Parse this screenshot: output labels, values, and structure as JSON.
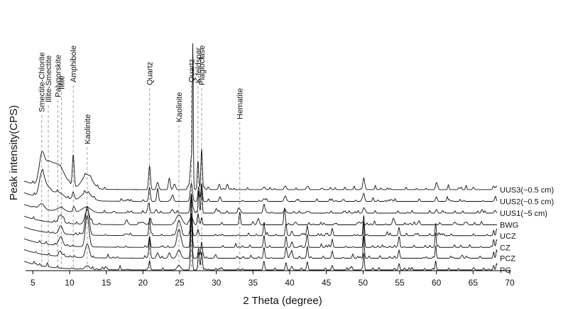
{
  "chart_data": {
    "type": "line",
    "xlabel": "2 Theta (degree)",
    "ylabel": "Peak intensity(CPS)",
    "xlim": [
      4,
      70
    ],
    "xticks": [
      5,
      10,
      15,
      20,
      25,
      30,
      35,
      40,
      45,
      50,
      55,
      60,
      65,
      70
    ],
    "grid": false,
    "legend": "none",
    "mineral_markers": [
      {
        "label": "Smectite-Chlorite",
        "x": 6.2
      },
      {
        "label": "Illite-Smectite",
        "x": 7.1
      },
      {
        "label": "Palygorskite",
        "x": 8.4
      },
      {
        "label": "Illite",
        "x": 8.9
      },
      {
        "label": "Amphibole",
        "x": 10.5
      },
      {
        "label": "Kaolinite",
        "x": 12.4
      },
      {
        "label": "Quartz",
        "x": 20.9
      },
      {
        "label": "Kaolinite",
        "x": 24.9
      },
      {
        "label": "Quartz",
        "x": 26.6
      },
      {
        "label": "K-feldspar",
        "x": 27.5
      },
      {
        "label": "Plagioclase",
        "x": 28.0
      },
      {
        "label": "Hematite",
        "x": 33.2
      }
    ],
    "series": [
      {
        "name": "UUS3(~0.5 cm)",
        "baseline": 7.6,
        "peaks": [
          [
            6.2,
            3.0,
            0.35
          ],
          [
            7.0,
            1.5,
            0.5
          ],
          [
            8.3,
            2.6,
            1.0
          ],
          [
            10.5,
            3.5,
            0.12
          ],
          [
            12.4,
            1.6,
            0.7
          ],
          [
            20.9,
            2.6,
            0.12
          ],
          [
            22.0,
            0.8,
            0.15
          ],
          [
            23.6,
            1.2,
            0.12
          ],
          [
            24.3,
            0.6,
            0.15
          ],
          [
            26.6,
            3.6,
            0.15
          ],
          [
            26.8,
            14.8,
            0.06
          ],
          [
            27.5,
            3.2,
            0.1
          ],
          [
            28.0,
            4.5,
            0.1
          ],
          [
            30.4,
            0.6,
            0.12
          ],
          [
            31.5,
            0.6,
            0.12
          ],
          [
            36.5,
            0.3,
            0.15
          ],
          [
            39.4,
            0.4,
            0.15
          ],
          [
            42.4,
            0.3,
            0.15
          ],
          [
            50.1,
            1.3,
            0.12
          ],
          [
            60.0,
            0.8,
            0.12
          ],
          [
            67.8,
            0.4,
            0.12
          ],
          [
            68.2,
            0.4,
            0.12
          ]
        ]
      },
      {
        "name": "UUS2(~0.5 cm)",
        "baseline": 6.3,
        "peaks": [
          [
            6.2,
            2.4,
            0.35
          ],
          [
            6.9,
            1.1,
            0.5
          ],
          [
            8.4,
            0.8,
            0.8
          ],
          [
            10.5,
            0.8,
            0.15
          ],
          [
            12.3,
            0.9,
            0.7
          ],
          [
            20.9,
            1.3,
            0.12
          ],
          [
            22.0,
            1.3,
            0.12
          ],
          [
            24.0,
            0.6,
            0.15
          ],
          [
            26.6,
            2.0,
            0.15
          ],
          [
            27.6,
            1.5,
            0.1
          ],
          [
            28.0,
            2.0,
            0.1
          ],
          [
            30.5,
            0.5,
            0.12
          ],
          [
            36.5,
            0.3,
            0.15
          ],
          [
            39.4,
            0.6,
            0.15
          ],
          [
            50.1,
            0.9,
            0.12
          ],
          [
            60.0,
            0.5,
            0.12
          ],
          [
            68.0,
            0.3,
            0.12
          ]
        ]
      },
      {
        "name": "UUS1(~5 cm)",
        "baseline": 5.0,
        "peaks": [
          [
            6.2,
            0.6,
            0.35
          ],
          [
            8.8,
            0.4,
            0.5
          ],
          [
            10.6,
            0.6,
            0.15
          ],
          [
            12.3,
            0.6,
            0.6
          ],
          [
            20.8,
            1.1,
            0.12
          ],
          [
            21.8,
            0.4,
            0.12
          ],
          [
            24.0,
            0.4,
            0.15
          ],
          [
            26.6,
            1.9,
            0.15
          ],
          [
            27.6,
            2.5,
            0.08
          ],
          [
            28.0,
            3.2,
            0.08
          ],
          [
            30.0,
            0.5,
            0.12
          ],
          [
            33.2,
            0.4,
            0.15
          ],
          [
            36.5,
            1.0,
            0.12
          ],
          [
            39.4,
            0.3,
            0.15
          ],
          [
            42.4,
            0.2,
            0.15
          ],
          [
            50.1,
            0.6,
            0.12
          ],
          [
            60.0,
            0.4,
            0.12
          ],
          [
            68.0,
            0.3,
            0.12
          ]
        ]
      },
      {
        "name": "BWG",
        "baseline": 3.7,
        "peaks": [
          [
            8.8,
            0.9,
            0.3
          ],
          [
            12.4,
            1.6,
            0.3
          ],
          [
            17.8,
            0.3,
            0.2
          ],
          [
            19.9,
            0.3,
            0.3
          ],
          [
            21.0,
            0.6,
            0.15
          ],
          [
            24.9,
            1.1,
            0.4
          ],
          [
            26.6,
            1.0,
            0.2
          ],
          [
            27.5,
            1.2,
            0.1
          ],
          [
            28.0,
            0.8,
            0.1
          ],
          [
            33.2,
            1.4,
            0.1
          ],
          [
            35.7,
            0.6,
            0.15
          ],
          [
            39.3,
            1.9,
            0.1
          ],
          [
            40.8,
            0.3,
            0.15
          ],
          [
            49.5,
            0.3,
            0.15
          ],
          [
            54.1,
            0.6,
            0.12
          ],
          [
            57.6,
            0.3,
            0.15
          ],
          [
            62.5,
            0.3,
            0.15
          ],
          [
            64.1,
            0.3,
            0.15
          ]
        ]
      },
      {
        "name": "UCZ",
        "baseline": 2.5,
        "peaks": [
          [
            8.8,
            0.9,
            0.25
          ],
          [
            12.4,
            3.2,
            0.25
          ],
          [
            17.8,
            0.2,
            0.2
          ],
          [
            20.9,
            1.7,
            0.1
          ],
          [
            24.9,
            1.7,
            0.25
          ],
          [
            26.6,
            4.0,
            0.1
          ],
          [
            27.5,
            0.7,
            0.1
          ],
          [
            36.5,
            1.2,
            0.1
          ],
          [
            39.5,
            1.1,
            0.1
          ],
          [
            40.3,
            0.5,
            0.12
          ],
          [
            42.4,
            1.1,
            0.1
          ],
          [
            45.8,
            0.8,
            0.1
          ],
          [
            50.1,
            2.1,
            0.08
          ],
          [
            54.9,
            0.9,
            0.1
          ],
          [
            59.9,
            1.3,
            0.08
          ],
          [
            67.8,
            0.6,
            0.08
          ],
          [
            68.2,
            0.7,
            0.08
          ],
          [
            68.4,
            0.6,
            0.08
          ]
        ]
      },
      {
        "name": "CZ",
        "baseline": 1.2,
        "peaks": [
          [
            8.8,
            1.0,
            0.25
          ],
          [
            12.4,
            3.3,
            0.25
          ],
          [
            20.9,
            1.2,
            0.1
          ],
          [
            24.9,
            2.0,
            0.25
          ],
          [
            26.6,
            6.0,
            0.1
          ],
          [
            36.5,
            1.3,
            0.1
          ],
          [
            39.5,
            1.2,
            0.1
          ],
          [
            40.3,
            0.6,
            0.12
          ],
          [
            42.4,
            1.4,
            0.1
          ],
          [
            45.8,
            0.9,
            0.1
          ],
          [
            50.1,
            2.7,
            0.08
          ],
          [
            54.9,
            1.0,
            0.1
          ],
          [
            59.9,
            1.5,
            0.08
          ],
          [
            67.8,
            0.6,
            0.08
          ],
          [
            68.2,
            0.8,
            0.08
          ],
          [
            68.4,
            0.6,
            0.08
          ]
        ]
      },
      {
        "name": "PCZ",
        "baseline": 0.0,
        "peaks": [
          [
            8.8,
            0.4,
            0.25
          ],
          [
            12.4,
            1.5,
            0.25
          ],
          [
            20.9,
            2.2,
            0.1
          ],
          [
            22.0,
            0.6,
            0.15
          ],
          [
            23.6,
            0.6,
            0.15
          ],
          [
            24.9,
            0.9,
            0.25
          ],
          [
            26.6,
            5.0,
            0.1
          ],
          [
            27.6,
            1.1,
            0.1
          ],
          [
            28.0,
            1.5,
            0.1
          ],
          [
            29.9,
            0.4,
            0.12
          ],
          [
            36.5,
            1.2,
            0.1
          ],
          [
            39.5,
            1.2,
            0.1
          ],
          [
            40.3,
            0.6,
            0.12
          ],
          [
            42.4,
            1.3,
            0.1
          ],
          [
            45.8,
            0.8,
            0.1
          ],
          [
            50.1,
            2.5,
            0.08
          ],
          [
            54.9,
            0.9,
            0.1
          ],
          [
            59.9,
            1.4,
            0.08
          ],
          [
            67.8,
            0.7,
            0.08
          ],
          [
            68.2,
            0.9,
            0.08
          ]
        ]
      },
      {
        "name": "PG",
        "baseline": -1.3,
        "peaks": [
          [
            12.4,
            0.4,
            0.3
          ],
          [
            20.9,
            1.0,
            0.1
          ],
          [
            24.9,
            0.5,
            0.25
          ],
          [
            26.6,
            6.0,
            0.1
          ],
          [
            27.6,
            2.0,
            0.1
          ],
          [
            28.0,
            1.9,
            0.1
          ],
          [
            36.5,
            0.9,
            0.1
          ],
          [
            39.5,
            0.8,
            0.1
          ],
          [
            40.3,
            0.4,
            0.12
          ],
          [
            42.4,
            0.9,
            0.1
          ],
          [
            45.8,
            0.5,
            0.1
          ],
          [
            50.1,
            1.9,
            0.08
          ],
          [
            54.9,
            0.7,
            0.1
          ],
          [
            59.9,
            1.0,
            0.08
          ],
          [
            67.8,
            0.5,
            0.08
          ],
          [
            68.2,
            0.7,
            0.08
          ]
        ]
      }
    ]
  }
}
